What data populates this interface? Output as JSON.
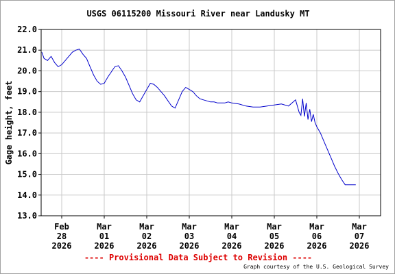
{
  "chart_data": {
    "type": "line",
    "title": "USGS 06115200 Missouri River near Landusky MT",
    "ylabel": "Gage height, feet",
    "xlabel": "",
    "ylim": [
      13.0,
      22.0
    ],
    "y_ticks": [
      "13.0",
      "14.0",
      "15.0",
      "16.0",
      "17.0",
      "18.0",
      "19.0",
      "20.0",
      "21.0",
      "22.0"
    ],
    "x_ticks": [
      {
        "month": "Feb",
        "day": "28",
        "year": "2026"
      },
      {
        "month": "Mar",
        "day": "01",
        "year": "2026"
      },
      {
        "month": "Mar",
        "day": "02",
        "year": "2026"
      },
      {
        "month": "Mar",
        "day": "03",
        "year": "2026"
      },
      {
        "month": "Mar",
        "day": "04",
        "year": "2026"
      },
      {
        "month": "Mar",
        "day": "05",
        "year": "2026"
      },
      {
        "month": "Mar",
        "day": "06",
        "year": "2026"
      },
      {
        "month": "Mar",
        "day": "07",
        "year": "2026"
      }
    ],
    "x_dates": [
      "2026-02-28",
      "2026-03-01",
      "2026-03-02",
      "2026-03-03",
      "2026-03-04",
      "2026-03-05",
      "2026-03-06",
      "2026-03-07"
    ],
    "grid": true,
    "line_color": "#0000cc",
    "series": [
      {
        "x": [
          "2026-02-27 12:00",
          "2026-02-27 14:00",
          "2026-02-27 16:00",
          "2026-02-27 18:00",
          "2026-02-27 20:00",
          "2026-02-27 22:00",
          "2026-02-28 00:00",
          "2026-02-28 02:00",
          "2026-02-28 04:00",
          "2026-02-28 06:00",
          "2026-02-28 08:00",
          "2026-02-28 10:00",
          "2026-02-28 12:00",
          "2026-02-28 14:00",
          "2026-02-28 16:00",
          "2026-02-28 18:00",
          "2026-02-28 20:00",
          "2026-02-28 22:00",
          "2026-03-01 00:00",
          "2026-03-01 02:00",
          "2026-03-01 04:00",
          "2026-03-01 06:00",
          "2026-03-01 08:00",
          "2026-03-01 10:00",
          "2026-03-01 12:00",
          "2026-03-01 14:00",
          "2026-03-01 16:00",
          "2026-03-01 18:00",
          "2026-03-01 20:00",
          "2026-03-01 22:00",
          "2026-03-02 00:00",
          "2026-03-02 02:00",
          "2026-03-02 04:00",
          "2026-03-02 06:00",
          "2026-03-02 08:00",
          "2026-03-02 10:00",
          "2026-03-02 12:00",
          "2026-03-02 14:00",
          "2026-03-02 16:00",
          "2026-03-02 18:00",
          "2026-03-02 20:00",
          "2026-03-02 22:00",
          "2026-03-03 00:00",
          "2026-03-03 02:00",
          "2026-03-03 04:00",
          "2026-03-03 06:00",
          "2026-03-03 08:00",
          "2026-03-03 10:00",
          "2026-03-03 12:00",
          "2026-03-03 14:00",
          "2026-03-03 16:00",
          "2026-03-03 18:00",
          "2026-03-03 20:00",
          "2026-03-03 22:00",
          "2026-03-04 00:00",
          "2026-03-04 04:00",
          "2026-03-04 08:00",
          "2026-03-04 12:00",
          "2026-03-04 16:00",
          "2026-03-04 20:00",
          "2026-03-05 00:00",
          "2026-03-05 04:00",
          "2026-03-05 08:00",
          "2026-03-05 12:00",
          "2026-03-05 14:00",
          "2026-03-05 15:00",
          "2026-03-05 16:00",
          "2026-03-05 17:00",
          "2026-03-05 18:00",
          "2026-03-05 19:00",
          "2026-03-05 20:00",
          "2026-03-05 21:00",
          "2026-03-05 22:00",
          "2026-03-05 23:00",
          "2026-03-06 00:00",
          "2026-03-06 02:00",
          "2026-03-06 04:00",
          "2026-03-06 06:00",
          "2026-03-06 08:00",
          "2026-03-06 10:00",
          "2026-03-06 12:00",
          "2026-03-06 14:00",
          "2026-03-06 16:00",
          "2026-03-06 18:00",
          "2026-03-06 20:00",
          "2026-03-06 22:00"
        ],
        "y": [
          20.9,
          20.6,
          20.5,
          20.7,
          20.4,
          20.2,
          20.3,
          20.5,
          20.7,
          20.9,
          21.0,
          21.05,
          20.8,
          20.6,
          20.2,
          19.8,
          19.5,
          19.35,
          19.4,
          19.7,
          19.95,
          20.2,
          20.25,
          20.0,
          19.7,
          19.3,
          18.9,
          18.6,
          18.5,
          18.8,
          19.1,
          19.4,
          19.35,
          19.2,
          19.0,
          18.8,
          18.55,
          18.3,
          18.2,
          18.6,
          19.0,
          19.2,
          19.1,
          19.0,
          18.8,
          18.65,
          18.6,
          18.55,
          18.5,
          18.5,
          18.45,
          18.45,
          18.45,
          18.5,
          18.45,
          18.4,
          18.3,
          18.25,
          18.25,
          18.3,
          18.35,
          18.4,
          18.3,
          18.6,
          18.0,
          17.85,
          18.65,
          17.8,
          18.45,
          17.65,
          18.15,
          17.55,
          17.9,
          17.5,
          17.3,
          17.0,
          16.6,
          16.2,
          15.8,
          15.4,
          15.05,
          14.75,
          14.5,
          14.5,
          14.5,
          14.5
        ]
      }
    ]
  },
  "footer": {
    "provisional": "---- Provisional Data Subject to Revision ----",
    "provisional_color": "#dd0000",
    "courtesy": "Graph courtesy of the U.S. Geological Survey"
  }
}
